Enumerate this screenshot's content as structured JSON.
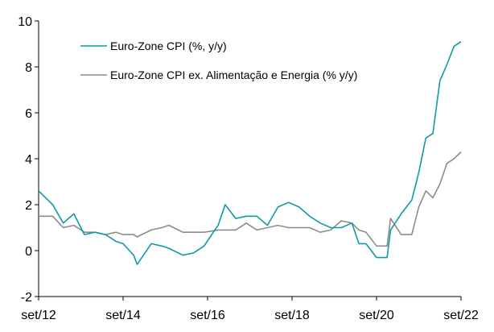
{
  "chart_data": {
    "type": "line",
    "title": "",
    "xlabel": "",
    "ylabel": "",
    "ylim": [
      -2,
      10
    ],
    "y_ticks": [
      "-2",
      "0",
      "2",
      "4",
      "6",
      "8",
      "10"
    ],
    "x_ticks": [
      "set/12",
      "set/14",
      "set/16",
      "set/18",
      "set/20",
      "set/22"
    ],
    "x_range": [
      "2012-09",
      "2022-09"
    ],
    "grid": false,
    "legend": "top-left",
    "series": [
      {
        "name": "Euro-Zone CPI (%, y/y)",
        "color": "#0e9aa7",
        "x": [
          "2012-09",
          "2013-01",
          "2013-04",
          "2013-07",
          "2013-10",
          "2014-01",
          "2014-04",
          "2014-07",
          "2014-09",
          "2014-12",
          "2015-01",
          "2015-05",
          "2015-08",
          "2015-10",
          "2016-02",
          "2016-05",
          "2016-08",
          "2016-12",
          "2017-02",
          "2017-05",
          "2017-08",
          "2017-11",
          "2018-02",
          "2018-05",
          "2018-08",
          "2018-11",
          "2019-02",
          "2019-05",
          "2019-08",
          "2019-11",
          "2020-02",
          "2020-04",
          "2020-06",
          "2020-09",
          "2020-12",
          "2021-01",
          "2021-04",
          "2021-07",
          "2021-09",
          "2021-11",
          "2022-01",
          "2022-03",
          "2022-05",
          "2022-07",
          "2022-09"
        ],
        "values": [
          2.6,
          2.0,
          1.2,
          1.6,
          0.7,
          0.8,
          0.7,
          0.4,
          0.3,
          -0.2,
          -0.6,
          0.3,
          0.2,
          0.1,
          -0.2,
          -0.1,
          0.2,
          1.1,
          2.0,
          1.4,
          1.5,
          1.5,
          1.1,
          1.9,
          2.1,
          1.9,
          1.5,
          1.2,
          1.0,
          1.0,
          1.2,
          0.3,
          0.3,
          -0.3,
          -0.3,
          0.9,
          1.6,
          2.2,
          3.4,
          4.9,
          5.1,
          7.4,
          8.1,
          8.9,
          9.1
        ]
      },
      {
        "name": "Euro-Zone CPI ex. Alimentação e Energia (% y/y)",
        "color": "#8c8c8c",
        "x": [
          "2012-09",
          "2013-01",
          "2013-04",
          "2013-07",
          "2013-10",
          "2014-01",
          "2014-04",
          "2014-07",
          "2014-09",
          "2014-12",
          "2015-01",
          "2015-05",
          "2015-08",
          "2015-10",
          "2016-02",
          "2016-05",
          "2016-08",
          "2016-12",
          "2017-02",
          "2017-05",
          "2017-08",
          "2017-11",
          "2018-02",
          "2018-05",
          "2018-08",
          "2018-11",
          "2019-02",
          "2019-05",
          "2019-08",
          "2019-11",
          "2020-02",
          "2020-04",
          "2020-06",
          "2020-09",
          "2020-12",
          "2021-01",
          "2021-04",
          "2021-07",
          "2021-09",
          "2021-11",
          "2022-01",
          "2022-03",
          "2022-05",
          "2022-07",
          "2022-09"
        ],
        "values": [
          1.5,
          1.5,
          1.0,
          1.1,
          0.8,
          0.8,
          0.7,
          0.8,
          0.7,
          0.7,
          0.6,
          0.9,
          1.0,
          1.1,
          0.8,
          0.8,
          0.8,
          0.9,
          0.9,
          0.9,
          1.2,
          0.9,
          1.0,
          1.1,
          1.0,
          1.0,
          1.0,
          0.8,
          0.9,
          1.3,
          1.2,
          0.9,
          0.8,
          0.2,
          0.2,
          1.4,
          0.7,
          0.7,
          1.9,
          2.6,
          2.3,
          2.9,
          3.8,
          4.0,
          4.3
        ]
      }
    ]
  }
}
